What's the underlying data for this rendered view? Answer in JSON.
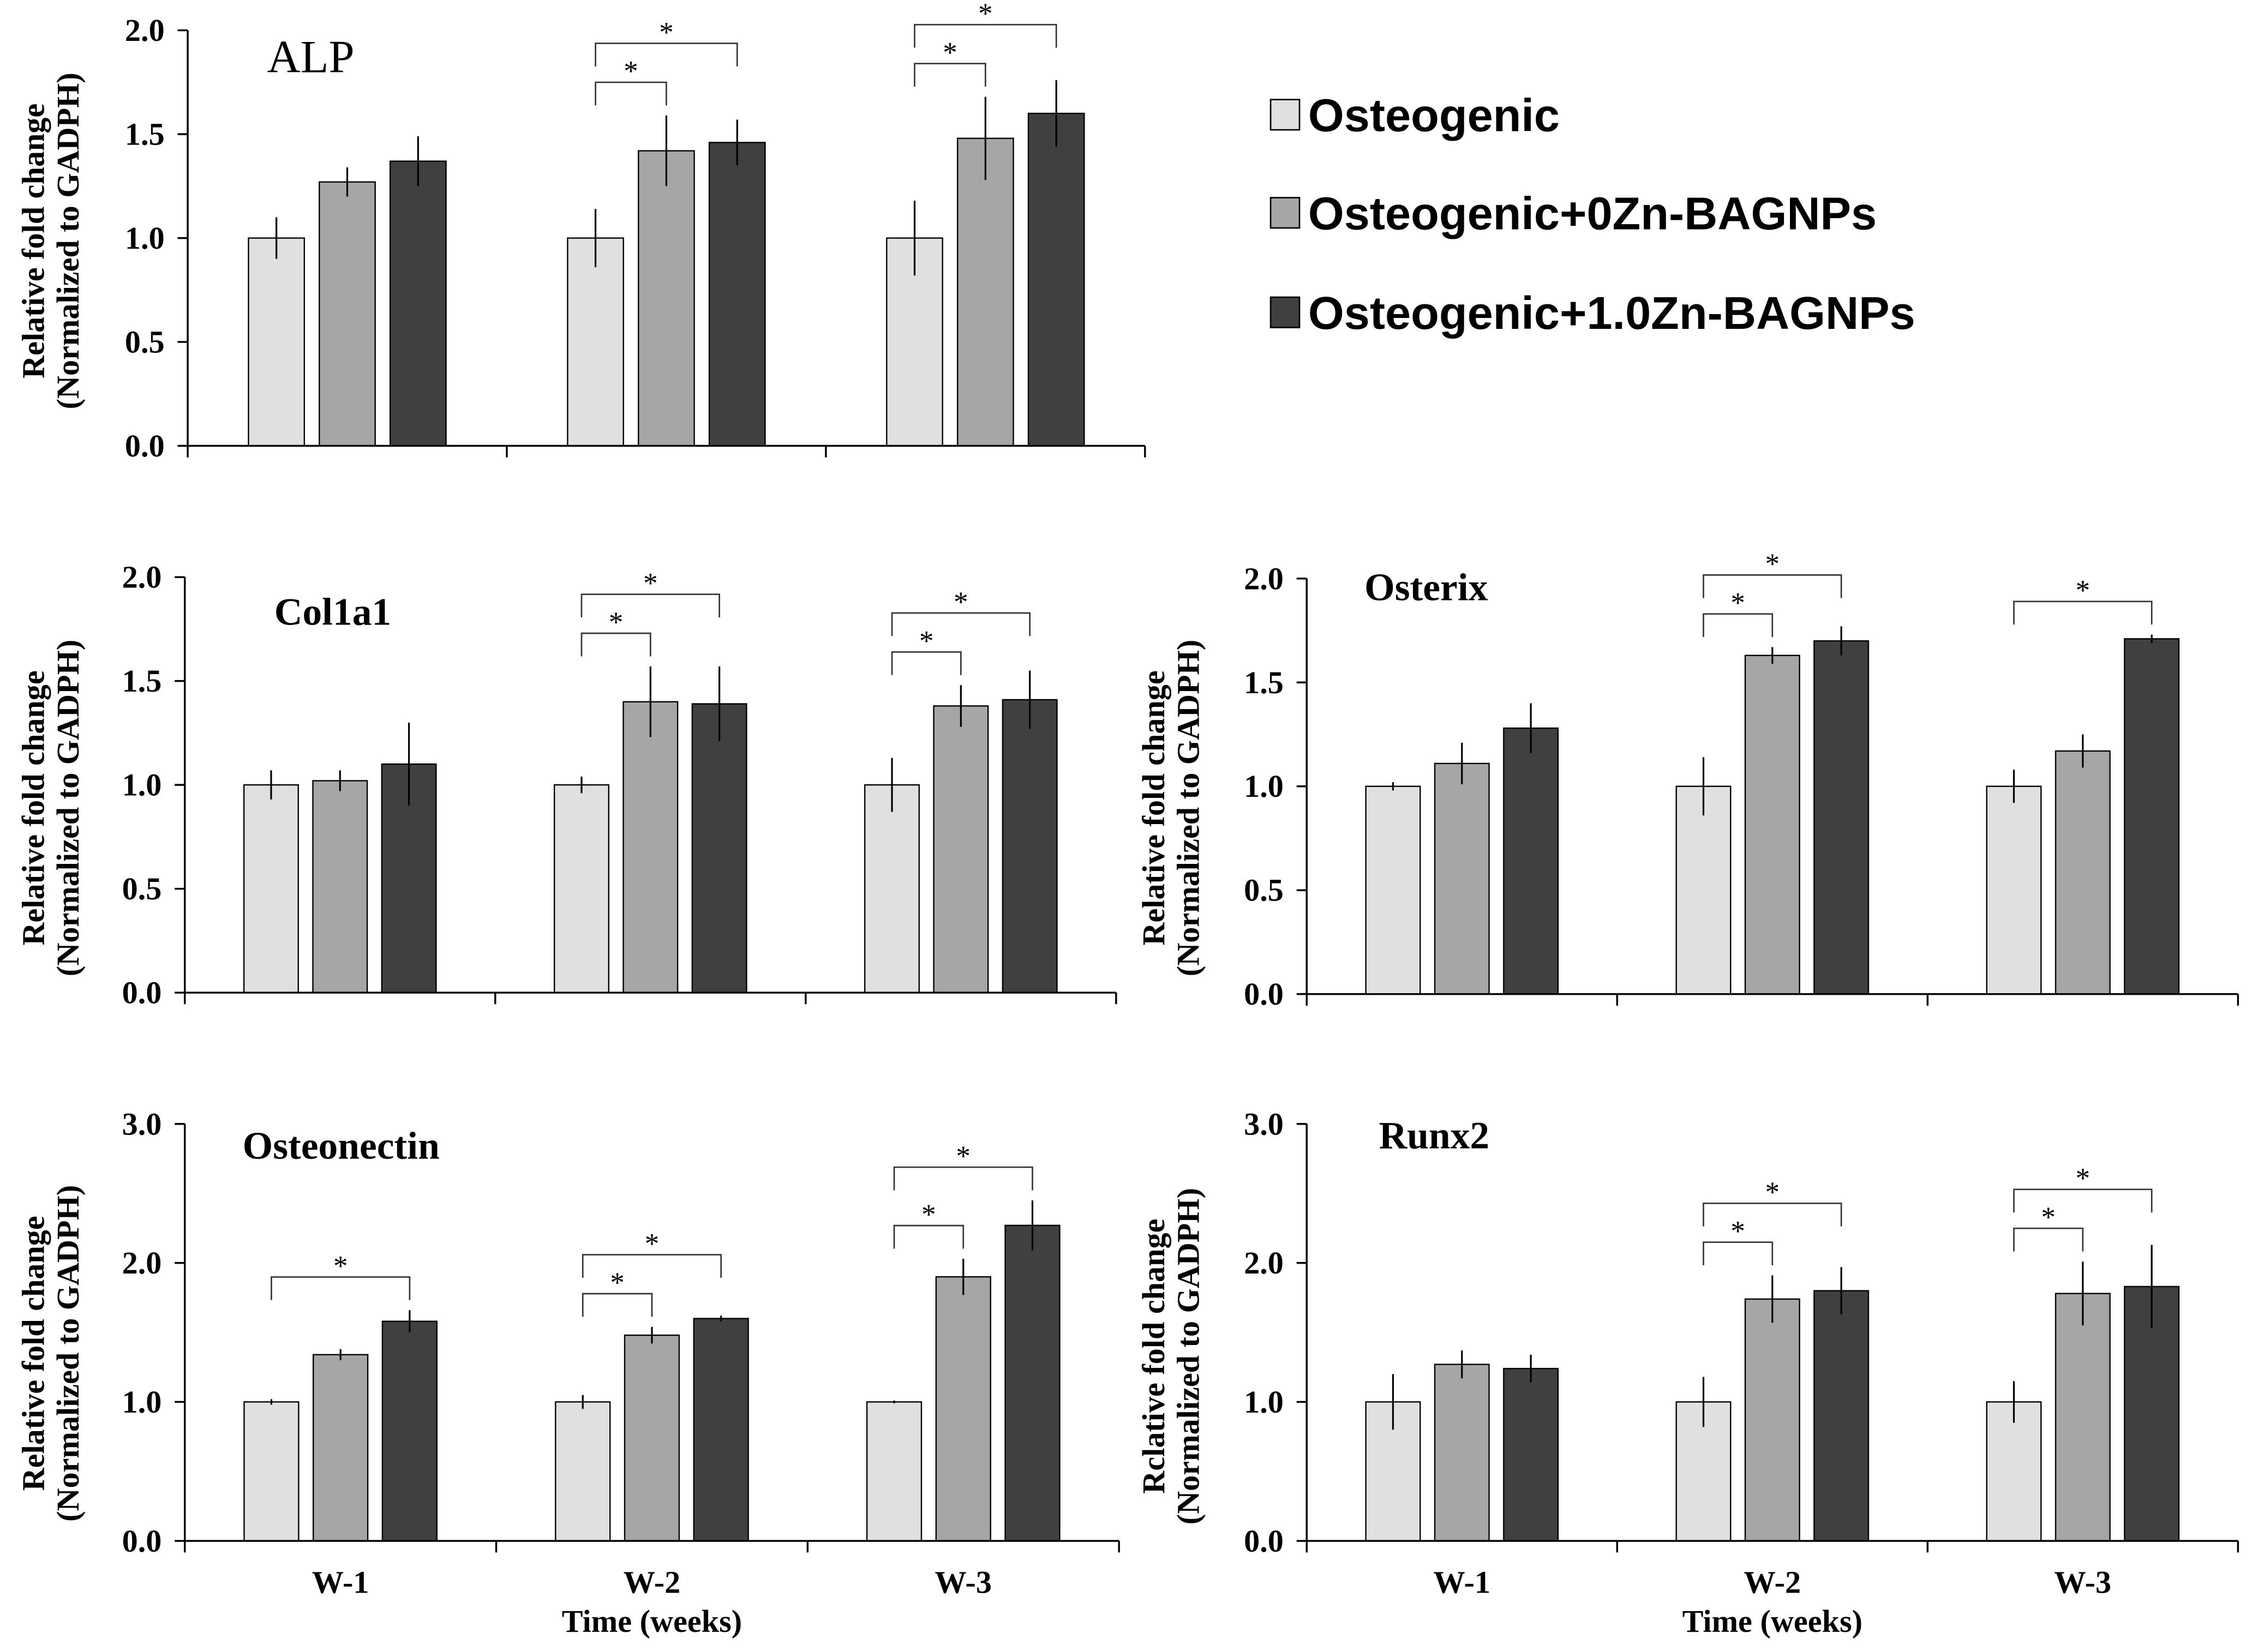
{
  "legend": {
    "placement": "top-right",
    "items": [
      {
        "label": "Osteogenic",
        "color": "#e0e0e0"
      },
      {
        "label": "Osteogenic+0Zn-BAGNPs",
        "color": "#a6a6a6"
      },
      {
        "label": "Osteogenic+1.0Zn-BAGNPs",
        "color": "#404040"
      }
    ]
  },
  "chart_data": [
    {
      "type": "bar",
      "title": "ALP",
      "ylabel": [
        "Relative fold change",
        "(Normalized to GADPH)"
      ],
      "ylim": [
        0,
        2
      ],
      "yticks": [
        "0.0",
        "0.5",
        "1.0",
        "1.5",
        "2.0"
      ],
      "grid": false,
      "series": [
        {
          "legend_index": 0,
          "values": [
            1.0,
            1.0,
            1.0
          ],
          "errors": [
            0.1,
            0.14,
            0.18
          ]
        },
        {
          "legend_index": 1,
          "values": [
            1.27,
            1.42,
            1.48
          ],
          "errors": [
            0.07,
            0.17,
            0.2
          ]
        },
        {
          "legend_index": 2,
          "values": [
            1.37,
            1.46,
            1.6
          ],
          "errors": [
            0.12,
            0.11,
            0.16
          ]
        }
      ],
      "significance": [
        {
          "group": 1,
          "from": 0,
          "to": 1,
          "label": "*"
        },
        {
          "group": 1,
          "from": 0,
          "to": 2,
          "label": "*"
        },
        {
          "group": 2,
          "from": 0,
          "to": 1,
          "label": "*"
        },
        {
          "group": 2,
          "from": 0,
          "to": 2,
          "label": "*"
        }
      ]
    },
    {
      "type": "bar",
      "title": "Col1a1",
      "ylabel": [
        "Relative fold change",
        "(Normalized to GADPH)"
      ],
      "ylim": [
        0,
        2
      ],
      "yticks": [
        "0.0",
        "0.5",
        "1.0",
        "1.5",
        "2.0"
      ],
      "grid": false,
      "series": [
        {
          "legend_index": 0,
          "values": [
            1.0,
            1.0,
            1.0
          ],
          "errors": [
            0.07,
            0.04,
            0.13
          ]
        },
        {
          "legend_index": 1,
          "values": [
            1.02,
            1.4,
            1.38
          ],
          "errors": [
            0.05,
            0.17,
            0.1
          ]
        },
        {
          "legend_index": 2,
          "values": [
            1.1,
            1.39,
            1.41
          ],
          "errors": [
            0.2,
            0.18,
            0.14
          ]
        }
      ],
      "significance": [
        {
          "group": 1,
          "from": 0,
          "to": 1,
          "label": "*"
        },
        {
          "group": 1,
          "from": 0,
          "to": 2,
          "label": "*"
        },
        {
          "group": 2,
          "from": 0,
          "to": 1,
          "label": "*"
        },
        {
          "group": 2,
          "from": 0,
          "to": 2,
          "label": "*"
        }
      ]
    },
    {
      "type": "bar",
      "title": "Osterix",
      "ylabel": [
        "Relative fold change",
        "(Normalized to GADPH)"
      ],
      "ylim": [
        0,
        2
      ],
      "yticks": [
        "0.0",
        "0.5",
        "1.0",
        "1.5",
        "2.0"
      ],
      "grid": false,
      "series": [
        {
          "legend_index": 0,
          "values": [
            1.0,
            1.0,
            1.0
          ],
          "errors": [
            0.02,
            0.14,
            0.08
          ]
        },
        {
          "legend_index": 1,
          "values": [
            1.11,
            1.63,
            1.17
          ],
          "errors": [
            0.1,
            0.04,
            0.08
          ]
        },
        {
          "legend_index": 2,
          "values": [
            1.28,
            1.7,
            1.71
          ],
          "errors": [
            0.12,
            0.07,
            0.02
          ]
        }
      ],
      "significance": [
        {
          "group": 1,
          "from": 0,
          "to": 1,
          "label": "*"
        },
        {
          "group": 1,
          "from": 0,
          "to": 2,
          "label": "*"
        },
        {
          "group": 2,
          "from": 0,
          "to": 2,
          "label": "*"
        }
      ]
    },
    {
      "type": "bar",
      "title": "Osteonectin",
      "ylabel": [
        "Relative fold change",
        "(Normalized to GADPH)"
      ],
      "xlabel": "Time (weeks)",
      "categories": [
        "W-1",
        "W-2",
        "W-3"
      ],
      "ylim": [
        0,
        3
      ],
      "yticks": [
        "0.0",
        "1.0",
        "2.0",
        "3.0"
      ],
      "grid": false,
      "series": [
        {
          "legend_index": 0,
          "values": [
            1.0,
            1.0,
            1.0
          ],
          "errors": [
            0.02,
            0.05,
            0.01
          ]
        },
        {
          "legend_index": 1,
          "values": [
            1.34,
            1.48,
            1.9
          ],
          "errors": [
            0.04,
            0.06,
            0.13
          ]
        },
        {
          "legend_index": 2,
          "values": [
            1.58,
            1.6,
            2.27
          ],
          "errors": [
            0.08,
            0.02,
            0.18
          ]
        }
      ],
      "significance": [
        {
          "group": 0,
          "from": 0,
          "to": 2,
          "label": "*"
        },
        {
          "group": 1,
          "from": 0,
          "to": 1,
          "label": "*"
        },
        {
          "group": 1,
          "from": 0,
          "to": 2,
          "label": "*"
        },
        {
          "group": 2,
          "from": 0,
          "to": 1,
          "label": "*"
        },
        {
          "group": 2,
          "from": 0,
          "to": 2,
          "label": "*"
        }
      ]
    },
    {
      "type": "bar",
      "title": "Runx2",
      "ylabel": [
        "Rclative fold change",
        "(Normalized to GADPH)"
      ],
      "xlabel": "Time (weeks)",
      "categories": [
        "W-1",
        "W-2",
        "W-3"
      ],
      "ylim": [
        0,
        3
      ],
      "yticks": [
        "0.0",
        "1.0",
        "2.0",
        "3.0"
      ],
      "grid": false,
      "series": [
        {
          "legend_index": 0,
          "values": [
            1.0,
            1.0,
            1.0
          ],
          "errors": [
            0.2,
            0.18,
            0.15
          ]
        },
        {
          "legend_index": 1,
          "values": [
            1.27,
            1.74,
            1.78
          ],
          "errors": [
            0.1,
            0.17,
            0.23
          ]
        },
        {
          "legend_index": 2,
          "values": [
            1.24,
            1.8,
            1.83
          ],
          "errors": [
            0.1,
            0.17,
            0.3
          ]
        }
      ],
      "significance": [
        {
          "group": 1,
          "from": 0,
          "to": 1,
          "label": "*"
        },
        {
          "group": 1,
          "from": 0,
          "to": 2,
          "label": "*"
        },
        {
          "group": 2,
          "from": 0,
          "to": 1,
          "label": "*"
        },
        {
          "group": 2,
          "from": 0,
          "to": 2,
          "label": "*"
        }
      ]
    }
  ]
}
